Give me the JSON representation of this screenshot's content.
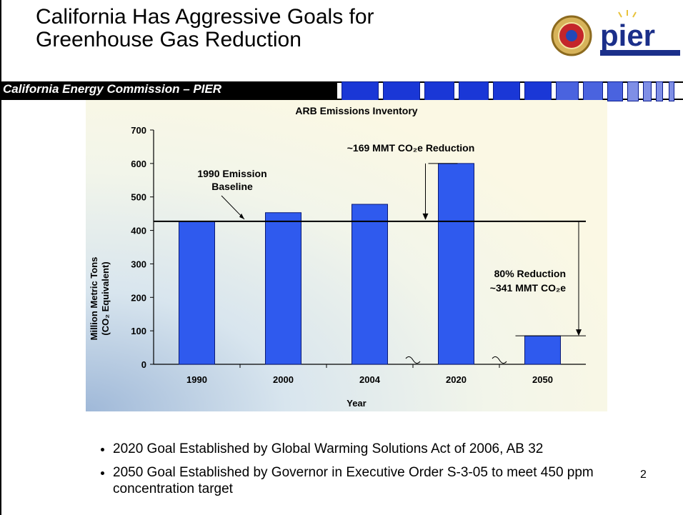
{
  "slide": {
    "title_line1": "California Has Aggressive Goals for",
    "title_line2": "Greenhouse Gas Reduction",
    "subtitle": "California Energy Commission – PIER",
    "logo_text": "pier",
    "page_number": "2"
  },
  "colors": {
    "bar": "#2f5aee",
    "bar_outline": "#0b1a74",
    "accent_squares": "#1a37d6"
  },
  "chart_data": {
    "type": "bar",
    "title": "ARB Emissions Inventory",
    "xlabel": "Year",
    "ylabel_line1": "Million Metric Tons",
    "ylabel_line2": "(CO₂ Equivalent)",
    "categories": [
      "1990",
      "2000",
      "2004",
      "2020",
      "2050"
    ],
    "values": [
      427,
      453,
      478,
      600,
      85
    ],
    "ylim": [
      0,
      700
    ],
    "yticks": [
      "0",
      "100",
      "200",
      "300",
      "400",
      "500",
      "600",
      "700"
    ],
    "baseline_value": 427,
    "annotations": {
      "baseline_line1": "1990 Emission",
      "baseline_line2": "Baseline",
      "reduction_2020": "~169 MMT CO₂e Reduction",
      "reduction_2050_line1": "80% Reduction",
      "reduction_2050_line2": "~341 MMT CO₂e"
    }
  },
  "bullets": [
    "2020 Goal Established by Global Warming Solutions Act of 2006, AB 32",
    "2050 Goal Established by Governor in Executive Order S-3-05 to meet 450 ppm concentration target"
  ]
}
